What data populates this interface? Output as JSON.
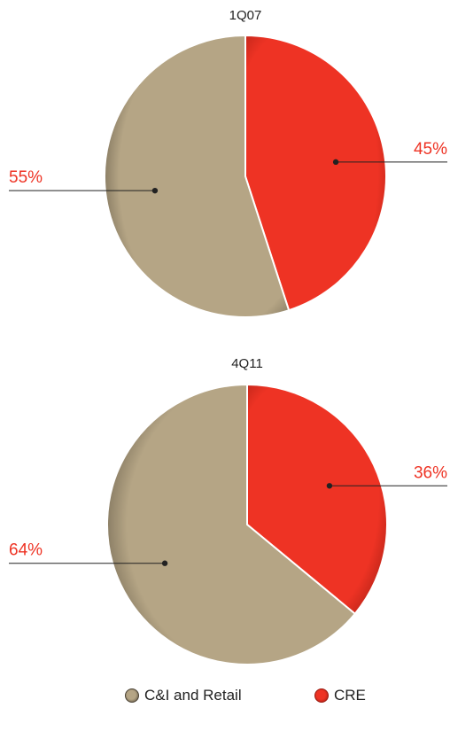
{
  "colors": {
    "cre": "#ee3324",
    "cre_dark": "#9a1a10",
    "ci_retail": "#b5a585",
    "ci_retail_dark": "#4a4234",
    "label_text": "#ee3324",
    "leader_line": "#222222",
    "title_text": "#222222"
  },
  "chart_data": [
    {
      "type": "pie",
      "title": "1Q07",
      "slices": [
        {
          "series": "CRE",
          "value": 45,
          "label": "45%",
          "color_key": "cre"
        },
        {
          "series": "C&I and Retail",
          "value": 55,
          "label": "55%",
          "color_key": "ci_retail"
        }
      ]
    },
    {
      "type": "pie",
      "title": "4Q11",
      "slices": [
        {
          "series": "CRE",
          "value": 36,
          "label": "36%",
          "color_key": "cre"
        },
        {
          "series": "C&I and Retail",
          "value": 64,
          "label": "64%",
          "color_key": "ci_retail"
        }
      ]
    }
  ],
  "legend": {
    "items": [
      {
        "label": "C&I and Retail",
        "color_key": "ci_retail"
      },
      {
        "label": "CRE",
        "color_key": "cre"
      }
    ]
  }
}
